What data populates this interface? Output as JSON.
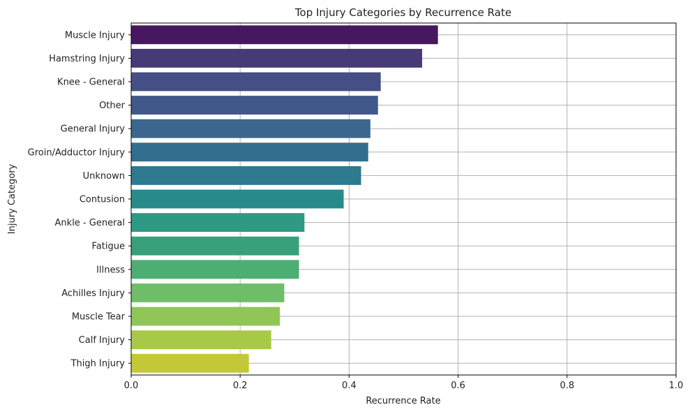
{
  "chart_data": {
    "type": "bar",
    "orientation": "horizontal",
    "title": "Top Injury Categories by Recurrence Rate",
    "xlabel": "Recurrence Rate",
    "ylabel": "Injury Category",
    "xlim": [
      0,
      1.0
    ],
    "xticks": [
      0.0,
      0.2,
      0.4,
      0.6,
      0.8,
      1.0
    ],
    "xtick_labels": [
      "0.0",
      "0.2",
      "0.4",
      "0.6",
      "0.8",
      "1.0"
    ],
    "grid": true,
    "palette": "viridis",
    "categories": [
      "Muscle Injury",
      "Hamstring Injury",
      "Knee - General",
      "Other",
      "General Injury",
      "Groin/Adductor Injury",
      "Unknown",
      "Contusion",
      "Ankle - General",
      "Fatigue",
      "Illness",
      "Achilles Injury",
      "Muscle Tear",
      "Calf Injury",
      "Thigh Injury"
    ],
    "values": [
      0.563,
      0.534,
      0.458,
      0.453,
      0.439,
      0.435,
      0.422,
      0.39,
      0.318,
      0.308,
      0.308,
      0.281,
      0.273,
      0.257,
      0.216
    ],
    "colors": [
      "#46175f",
      "#483a77",
      "#454e85",
      "#40598a",
      "#3b668d",
      "#336e8e",
      "#2e7a8e",
      "#288b8a",
      "#2e9a83",
      "#38a07a",
      "#4cae72",
      "#6fbd68",
      "#8fc657",
      "#a8c947",
      "#c3c936"
    ]
  }
}
